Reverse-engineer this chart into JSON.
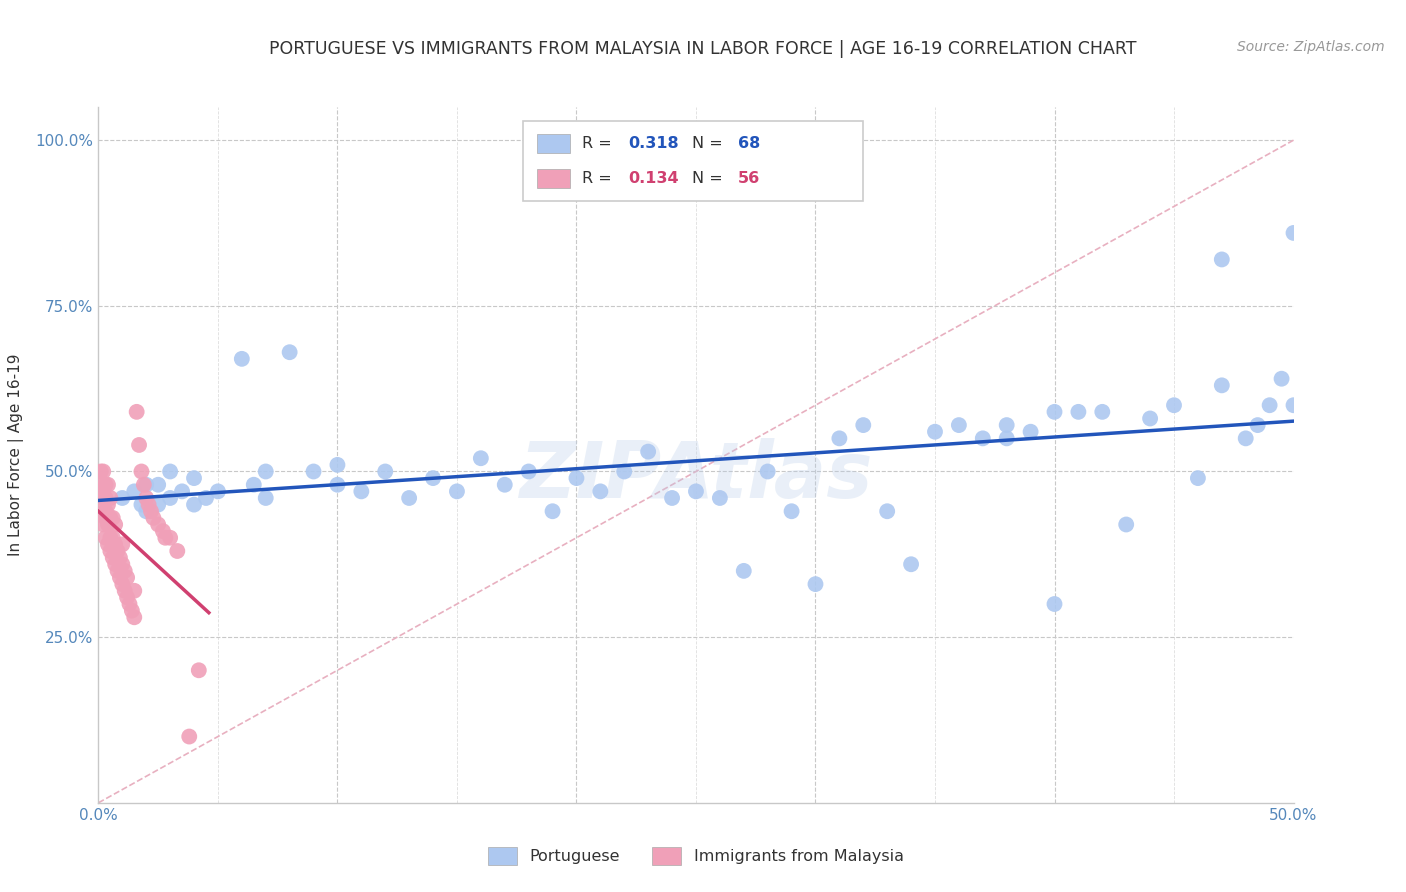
{
  "title": "PORTUGUESE VS IMMIGRANTS FROM MALAYSIA IN LABOR FORCE | AGE 16-19 CORRELATION CHART",
  "source_text": "Source: ZipAtlas.com",
  "ylabel": "In Labor Force | Age 16-19",
  "xmin": 0.0,
  "xmax": 0.5,
  "ymin": 0.0,
  "ymax": 1.05,
  "watermark": "ZIPAtlas",
  "legend_r1_label": "R = ",
  "legend_r1_val": "0.318",
  "legend_n1_label": "N = ",
  "legend_n1_val": "68",
  "legend_r2_label": "R = ",
  "legend_r2_val": "0.134",
  "legend_n2_label": "N = ",
  "legend_n2_val": "56",
  "blue_color": "#adc8f0",
  "blue_line_color": "#2255bb",
  "pink_color": "#f0a0b8",
  "pink_line_color": "#d04070",
  "diagonal_color": "#e8b0c0",
  "axis_color": "#5588bb",
  "grid_color": "#c8c8c8",
  "text_color": "#333333",
  "background_color": "#ffffff",
  "title_fontsize": 12.5,
  "source_fontsize": 10,
  "tick_fontsize": 11,
  "ylabel_fontsize": 11,
  "blue_scatter_x": [
    0.01,
    0.015,
    0.018,
    0.02,
    0.02,
    0.025,
    0.025,
    0.03,
    0.03,
    0.035,
    0.04,
    0.04,
    0.045,
    0.05,
    0.06,
    0.065,
    0.07,
    0.07,
    0.08,
    0.09,
    0.1,
    0.1,
    0.11,
    0.12,
    0.13,
    0.14,
    0.15,
    0.16,
    0.17,
    0.18,
    0.19,
    0.2,
    0.21,
    0.22,
    0.23,
    0.24,
    0.25,
    0.26,
    0.27,
    0.28,
    0.29,
    0.3,
    0.31,
    0.32,
    0.33,
    0.34,
    0.35,
    0.36,
    0.37,
    0.38,
    0.38,
    0.39,
    0.4,
    0.4,
    0.41,
    0.42,
    0.43,
    0.44,
    0.45,
    0.46,
    0.47,
    0.47,
    0.48,
    0.485,
    0.49,
    0.495,
    0.5,
    0.5
  ],
  "blue_scatter_y": [
    0.46,
    0.47,
    0.45,
    0.44,
    0.48,
    0.45,
    0.48,
    0.46,
    0.5,
    0.47,
    0.45,
    0.49,
    0.46,
    0.47,
    0.67,
    0.48,
    0.46,
    0.5,
    0.68,
    0.5,
    0.48,
    0.51,
    0.47,
    0.5,
    0.46,
    0.49,
    0.47,
    0.52,
    0.48,
    0.5,
    0.44,
    0.49,
    0.47,
    0.5,
    0.53,
    0.46,
    0.47,
    0.46,
    0.35,
    0.5,
    0.44,
    0.33,
    0.55,
    0.57,
    0.44,
    0.36,
    0.56,
    0.57,
    0.55,
    0.57,
    0.55,
    0.56,
    0.3,
    0.59,
    0.59,
    0.59,
    0.42,
    0.58,
    0.6,
    0.49,
    0.82,
    0.63,
    0.55,
    0.57,
    0.6,
    0.64,
    0.86,
    0.6
  ],
  "pink_scatter_x": [
    0.001,
    0.001,
    0.001,
    0.002,
    0.002,
    0.002,
    0.002,
    0.003,
    0.003,
    0.003,
    0.003,
    0.003,
    0.004,
    0.004,
    0.004,
    0.004,
    0.005,
    0.005,
    0.005,
    0.005,
    0.006,
    0.006,
    0.006,
    0.007,
    0.007,
    0.007,
    0.008,
    0.008,
    0.009,
    0.009,
    0.01,
    0.01,
    0.01,
    0.011,
    0.011,
    0.012,
    0.012,
    0.013,
    0.014,
    0.015,
    0.015,
    0.016,
    0.017,
    0.018,
    0.019,
    0.02,
    0.021,
    0.022,
    0.023,
    0.025,
    0.027,
    0.028,
    0.03,
    0.033,
    0.038,
    0.042
  ],
  "pink_scatter_y": [
    0.44,
    0.47,
    0.5,
    0.42,
    0.46,
    0.48,
    0.5,
    0.4,
    0.43,
    0.44,
    0.46,
    0.48,
    0.39,
    0.42,
    0.45,
    0.48,
    0.38,
    0.4,
    0.43,
    0.46,
    0.37,
    0.4,
    0.43,
    0.36,
    0.39,
    0.42,
    0.35,
    0.38,
    0.34,
    0.37,
    0.33,
    0.36,
    0.39,
    0.32,
    0.35,
    0.31,
    0.34,
    0.3,
    0.29,
    0.28,
    0.32,
    0.59,
    0.54,
    0.5,
    0.48,
    0.46,
    0.45,
    0.44,
    0.43,
    0.42,
    0.41,
    0.4,
    0.4,
    0.38,
    0.1,
    0.2
  ]
}
